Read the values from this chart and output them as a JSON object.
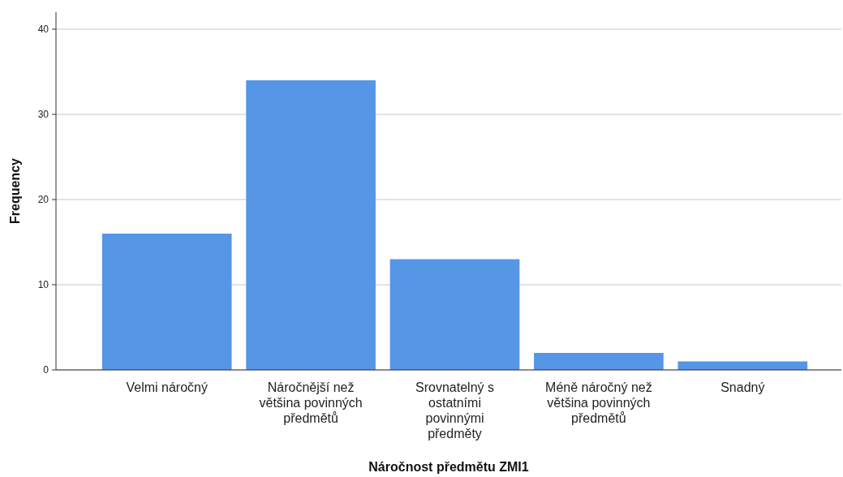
{
  "chart_data": {
    "type": "bar",
    "xlabel": "Náročnost předmětu ZMI1",
    "ylabel": "Frequency",
    "categories": [
      "Velmi náročný",
      "Náročnější než většina povinných předmětů",
      "Srovnatelný s ostatními povinnými předměty",
      "Méně náročný než většina povinných předmětů",
      "Snadný"
    ],
    "values": [
      16,
      34,
      13,
      2,
      1
    ],
    "color": "#5596e6",
    "ylim": [
      0,
      42
    ],
    "yticks": [
      0,
      10,
      20,
      30,
      40
    ],
    "grid": "y"
  }
}
